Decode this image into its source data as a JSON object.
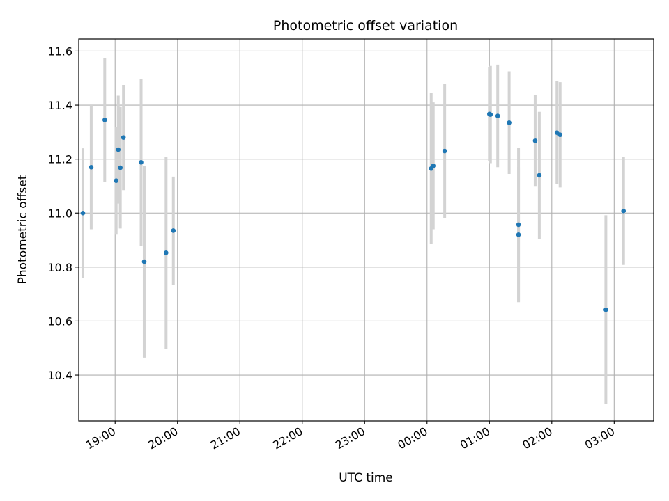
{
  "chart_data": {
    "type": "scatter",
    "title": "Photometric offset variation",
    "xlabel": "UTC time",
    "ylabel": "Photometric offset",
    "grid": true,
    "x_axis": {
      "min": "18:25",
      "max": "03:38",
      "ticks": [
        "19:00",
        "20:00",
        "21:00",
        "22:00",
        "23:00",
        "00:00",
        "01:00",
        "02:00",
        "03:00"
      ]
    },
    "y_axis": {
      "min": 10.23,
      "max": 11.645,
      "ticks": [
        "10.4",
        "10.6",
        "10.8",
        "11.0",
        "11.2",
        "11.4",
        "11.6"
      ]
    },
    "colors": {
      "point": "#1f77b4",
      "errorbar": "#d3d3d3",
      "grid": "#b0b0b0"
    },
    "points": [
      {
        "time": "18:29",
        "y": 11.0,
        "err": 0.24
      },
      {
        "time": "18:37",
        "y": 11.17,
        "err": 0.23
      },
      {
        "time": "18:50",
        "y": 11.345,
        "err": 0.23
      },
      {
        "time": "19:01",
        "y": 11.12,
        "err": 0.2
      },
      {
        "time": "19:03",
        "y": 11.235,
        "err": 0.2
      },
      {
        "time": "19:05",
        "y": 11.168,
        "err": 0.225
      },
      {
        "time": "19:08",
        "y": 11.28,
        "err": 0.195
      },
      {
        "time": "19:25",
        "y": 11.188,
        "err": 0.31
      },
      {
        "time": "19:28",
        "y": 10.82,
        "err": 0.355
      },
      {
        "time": "19:49",
        "y": 10.853,
        "err": 0.355
      },
      {
        "time": "19:56",
        "y": 10.935,
        "err": 0.2
      },
      {
        "time": "00:04",
        "y": 11.165,
        "err": 0.28
      },
      {
        "time": "00:06",
        "y": 11.175,
        "err": 0.235
      },
      {
        "time": "00:17",
        "y": 11.23,
        "err": 0.25
      },
      {
        "time": "01:00",
        "y": 11.367,
        "err": 0.175
      },
      {
        "time": "01:01",
        "y": 11.365,
        "err": 0.18
      },
      {
        "time": "01:08",
        "y": 11.36,
        "err": 0.19
      },
      {
        "time": "01:19",
        "y": 11.335,
        "err": 0.19
      },
      {
        "time": "01:28",
        "y": 10.957,
        "err": 0.285
      },
      {
        "time": "01:28",
        "y": 10.92,
        "err": 0.25
      },
      {
        "time": "01:44",
        "y": 11.268,
        "err": 0.17
      },
      {
        "time": "01:48",
        "y": 11.14,
        "err": 0.235
      },
      {
        "time": "02:05",
        "y": 11.298,
        "err": 0.19
      },
      {
        "time": "02:08",
        "y": 11.29,
        "err": 0.195
      },
      {
        "time": "02:52",
        "y": 10.642,
        "err": 0.35
      },
      {
        "time": "03:09",
        "y": 11.008,
        "err": 0.2
      }
    ]
  }
}
